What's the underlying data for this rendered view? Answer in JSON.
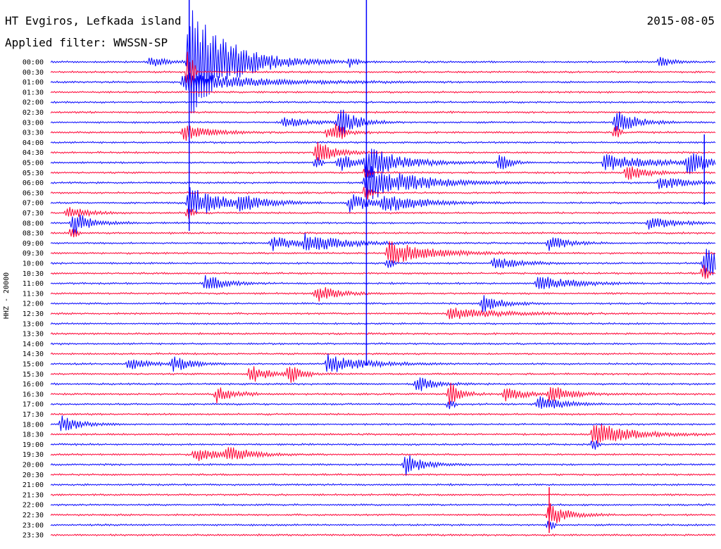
{
  "header": {
    "station": "HT Evgiros, Lefkada island",
    "filter": "Applied filter: WWSSN-SP",
    "date": "2015-08-05"
  },
  "chart_data": {
    "type": "line",
    "title": "HT Evgiros, Lefkada island",
    "subtitle": "Applied filter: WWSSN-SP",
    "date": "2015-08-05",
    "ylabel": "HHZ - 20000",
    "yticks": [
      "00:00",
      "00:30",
      "01:00",
      "01:30",
      "02:00",
      "02:30",
      "03:00",
      "03:30",
      "04:00",
      "04:30",
      "05:00",
      "05:30",
      "06:00",
      "06:30",
      "07:00",
      "07:30",
      "08:00",
      "08:30",
      "09:00",
      "09:30",
      "10:00",
      "10:30",
      "11:00",
      "11:30",
      "12:00",
      "12:30",
      "13:00",
      "13:30",
      "14:00",
      "14:30",
      "15:00",
      "15:30",
      "16:00",
      "16:30",
      "17:00",
      "17:30",
      "18:00",
      "18:30",
      "19:00",
      "19:30",
      "20:00",
      "20:30",
      "21:00",
      "21:30",
      "22:00",
      "22:30",
      "23:00",
      "23:30"
    ],
    "trace_minutes": 30,
    "grid": false,
    "legend": "none",
    "colors": [
      "#0000ff",
      "#ff0033"
    ],
    "events": [
      {
        "trace": "00:00",
        "minute": 9,
        "amplitude": 1.0,
        "duration": 1.2
      },
      {
        "trace": "00:00",
        "minute": 12.5,
        "amplitude": 9.0,
        "duration": 3.5
      },
      {
        "trace": "00:00",
        "minute": 27,
        "amplitude": 0.8,
        "duration": 0.8
      },
      {
        "trace": "00:00",
        "minute": 55,
        "amplitude": 0.9,
        "duration": 1.0
      },
      {
        "trace": "01:00",
        "minute": 12,
        "amplitude": 1.5,
        "duration": 6
      },
      {
        "trace": "03:00",
        "minute": 21,
        "amplitude": 1.0,
        "duration": 2.0
      },
      {
        "trace": "03:00",
        "minute": 26,
        "amplitude": 2.5,
        "duration": 1.5
      },
      {
        "trace": "03:00",
        "minute": 51,
        "amplitude": 2.5,
        "duration": 1.5
      },
      {
        "trace": "03:30",
        "minute": 12,
        "amplitude": 1.5,
        "duration": 2.0
      },
      {
        "trace": "03:30",
        "minute": 25,
        "amplitude": 1.0,
        "duration": 1.5
      },
      {
        "trace": "04:30",
        "minute": 24,
        "amplitude": 2.0,
        "duration": 1.5
      },
      {
        "trace": "05:00",
        "minute": 26,
        "amplitude": 1.5,
        "duration": 1.5
      },
      {
        "trace": "05:00",
        "minute": 28.5,
        "amplitude": 2.5,
        "duration": 3.0
      },
      {
        "trace": "05:00",
        "minute": 40.5,
        "amplitude": 1.8,
        "duration": 0.8
      },
      {
        "trace": "05:00",
        "minute": 50,
        "amplitude": 1.3,
        "duration": 4.0
      },
      {
        "trace": "05:00",
        "minute": 57.5,
        "amplitude": 1.8,
        "duration": 2.0
      },
      {
        "trace": "05:30",
        "minute": 52,
        "amplitude": 1.5,
        "duration": 1.5
      },
      {
        "trace": "06:00",
        "minute": 28.5,
        "amplitude": 3.0,
        "duration": 4.0
      },
      {
        "trace": "06:00",
        "minute": 55,
        "amplitude": 1.2,
        "duration": 2.0
      },
      {
        "trace": "07:00",
        "minute": 12.5,
        "amplitude": 2.5,
        "duration": 3.0
      },
      {
        "trace": "07:00",
        "minute": 17,
        "amplitude": 1.0,
        "duration": 2.0
      },
      {
        "trace": "07:00",
        "minute": 27,
        "amplitude": 1.5,
        "duration": 2.0
      },
      {
        "trace": "07:00",
        "minute": 30,
        "amplitude": 1.5,
        "duration": 3.0
      },
      {
        "trace": "07:30",
        "minute": 1.5,
        "amplitude": 1.2,
        "duration": 1.5
      },
      {
        "trace": "08:00",
        "minute": 2,
        "amplitude": 2.0,
        "duration": 1.5
      },
      {
        "trace": "08:00",
        "minute": 54,
        "amplitude": 1.2,
        "duration": 2.0
      },
      {
        "trace": "09:00",
        "minute": 23,
        "amplitude": 1.5,
        "duration": 3.0
      },
      {
        "trace": "09:00",
        "minute": 20,
        "amplitude": 1.2,
        "duration": 2.0
      },
      {
        "trace": "09:00",
        "minute": 45,
        "amplitude": 1.3,
        "duration": 1.5
      },
      {
        "trace": "09:30",
        "minute": 30.5,
        "amplitude": 2.0,
        "duration": 3.5
      },
      {
        "trace": "10:00",
        "minute": 59,
        "amplitude": 3.0,
        "duration": 2.0
      },
      {
        "trace": "10:00",
        "minute": 40,
        "amplitude": 1.2,
        "duration": 2.0
      },
      {
        "trace": "11:00",
        "minute": 14,
        "amplitude": 1.5,
        "duration": 1.5
      },
      {
        "trace": "11:00",
        "minute": 44,
        "amplitude": 1.5,
        "duration": 2.5
      },
      {
        "trace": "11:30",
        "minute": 24,
        "amplitude": 1.5,
        "duration": 1.5
      },
      {
        "trace": "12:00",
        "minute": 39,
        "amplitude": 1.5,
        "duration": 1.5
      },
      {
        "trace": "12:30",
        "minute": 36,
        "amplitude": 1.0,
        "duration": 4.0
      },
      {
        "trace": "15:00",
        "minute": 25,
        "amplitude": 1.5,
        "duration": 3.0
      },
      {
        "trace": "15:00",
        "minute": 7,
        "amplitude": 1.0,
        "duration": 1.5
      },
      {
        "trace": "15:00",
        "minute": 11,
        "amplitude": 1.3,
        "duration": 1.5
      },
      {
        "trace": "15:30",
        "minute": 18,
        "amplitude": 1.5,
        "duration": 1.5
      },
      {
        "trace": "15:30",
        "minute": 21.5,
        "amplitude": 1.5,
        "duration": 1.0
      },
      {
        "trace": "16:00",
        "minute": 33,
        "amplitude": 1.3,
        "duration": 1.5
      },
      {
        "trace": "16:30",
        "minute": 15,
        "amplitude": 1.3,
        "duration": 1.5
      },
      {
        "trace": "16:30",
        "minute": 36,
        "amplitude": 2.0,
        "duration": 1.0
      },
      {
        "trace": "16:30",
        "minute": 41,
        "amplitude": 1.3,
        "duration": 1.5
      },
      {
        "trace": "16:30",
        "minute": 45,
        "amplitude": 1.3,
        "duration": 2.0
      },
      {
        "trace": "17:00",
        "minute": 44,
        "amplitude": 1.3,
        "duration": 2.0
      },
      {
        "trace": "18:00",
        "minute": 1,
        "amplitude": 1.3,
        "duration": 1.5
      },
      {
        "trace": "18:30",
        "minute": 49,
        "amplitude": 2.0,
        "duration": 3.0
      },
      {
        "trace": "19:30",
        "minute": 13,
        "amplitude": 1.2,
        "duration": 2.0
      },
      {
        "trace": "19:30",
        "minute": 16,
        "amplitude": 1.2,
        "duration": 2.0
      },
      {
        "trace": "20:00",
        "minute": 32,
        "amplitude": 1.8,
        "duration": 1.5
      },
      {
        "trace": "22:30",
        "minute": 45,
        "amplitude": 2.0,
        "duration": 1.5
      }
    ]
  }
}
